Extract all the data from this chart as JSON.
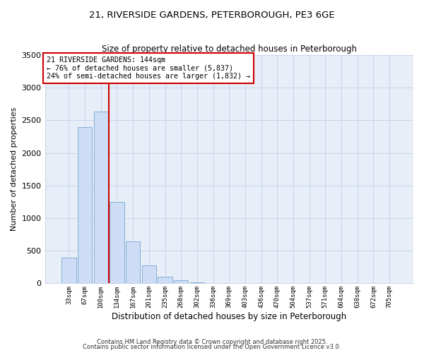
{
  "title_line1": "21, RIVERSIDE GARDENS, PETERBOROUGH, PE3 6GE",
  "title_line2": "Size of property relative to detached houses in Peterborough",
  "bar_labels": [
    "33sqm",
    "67sqm",
    "100sqm",
    "134sqm",
    "167sqm",
    "201sqm",
    "235sqm",
    "268sqm",
    "302sqm",
    "336sqm",
    "369sqm",
    "403sqm",
    "436sqm",
    "470sqm",
    "504sqm",
    "537sqm",
    "571sqm",
    "604sqm",
    "638sqm",
    "672sqm",
    "705sqm"
  ],
  "bar_values": [
    390,
    2400,
    2630,
    1250,
    640,
    270,
    100,
    50,
    20,
    0,
    0,
    0,
    0,
    0,
    0,
    0,
    0,
    0,
    0,
    0,
    0
  ],
  "bar_color": "#ccddf5",
  "bar_edge_color": "#85aed4",
  "background_color": "#ffffff",
  "plot_bg_color": "#e8eef8",
  "grid_color": "#c8d4e8",
  "marker_color": "#cc0000",
  "annotation_title": "21 RIVERSIDE GARDENS: 144sqm",
  "annotation_line2": "← 76% of detached houses are smaller (5,837)",
  "annotation_line3": "24% of semi-detached houses are larger (1,832) →",
  "annotation_box_color": "#cc0000",
  "xlabel": "Distribution of detached houses by size in Peterborough",
  "ylabel": "Number of detached properties",
  "ylim": [
    0,
    3500
  ],
  "yticks": [
    0,
    500,
    1000,
    1500,
    2000,
    2500,
    3000,
    3500
  ],
  "footer_line1": "Contains HM Land Registry data © Crown copyright and database right 2025.",
  "footer_line2": "Contains public sector information licensed under the Open Government Licence v3.0."
}
